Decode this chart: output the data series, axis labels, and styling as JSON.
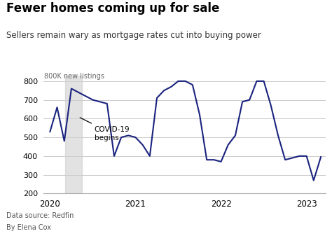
{
  "title": "Fewer homes coming up for sale",
  "subtitle": "Sellers remain wary as mortgage rates cut into buying power",
  "ylabel": "800K new listings",
  "footer1": "Data source: Redfin",
  "footer2": "By Elena Cox",
  "line_color": "#1a237e",
  "background_color": "#ffffff",
  "covid_annotation": "COVID-19\nbegins",
  "covid_shade_start": 2020.18,
  "covid_shade_end": 2020.37,
  "ylim": [
    200,
    830
  ],
  "yticks": [
    200,
    300,
    400,
    500,
    600,
    700,
    800
  ],
  "xlim": [
    2019.92,
    2023.22
  ],
  "xticks": [
    2020,
    2021,
    2022,
    2023
  ],
  "x": [
    2020.0,
    2020.083,
    2020.167,
    2020.25,
    2020.333,
    2020.417,
    2020.5,
    2020.583,
    2020.667,
    2020.75,
    2020.833,
    2020.917,
    2021.0,
    2021.083,
    2021.167,
    2021.25,
    2021.333,
    2021.417,
    2021.5,
    2021.583,
    2021.667,
    2021.75,
    2021.833,
    2021.917,
    2022.0,
    2022.083,
    2022.167,
    2022.25,
    2022.333,
    2022.417,
    2022.5,
    2022.583,
    2022.667,
    2022.75,
    2022.833,
    2022.917,
    2023.0,
    2023.083,
    2023.167
  ],
  "y": [
    530,
    660,
    480,
    760,
    740,
    720,
    700,
    690,
    680,
    400,
    500,
    510,
    500,
    460,
    400,
    710,
    750,
    770,
    800,
    800,
    780,
    620,
    380,
    380,
    370,
    460,
    510,
    690,
    700,
    800,
    800,
    670,
    510,
    380,
    390,
    400,
    400,
    270,
    395
  ]
}
